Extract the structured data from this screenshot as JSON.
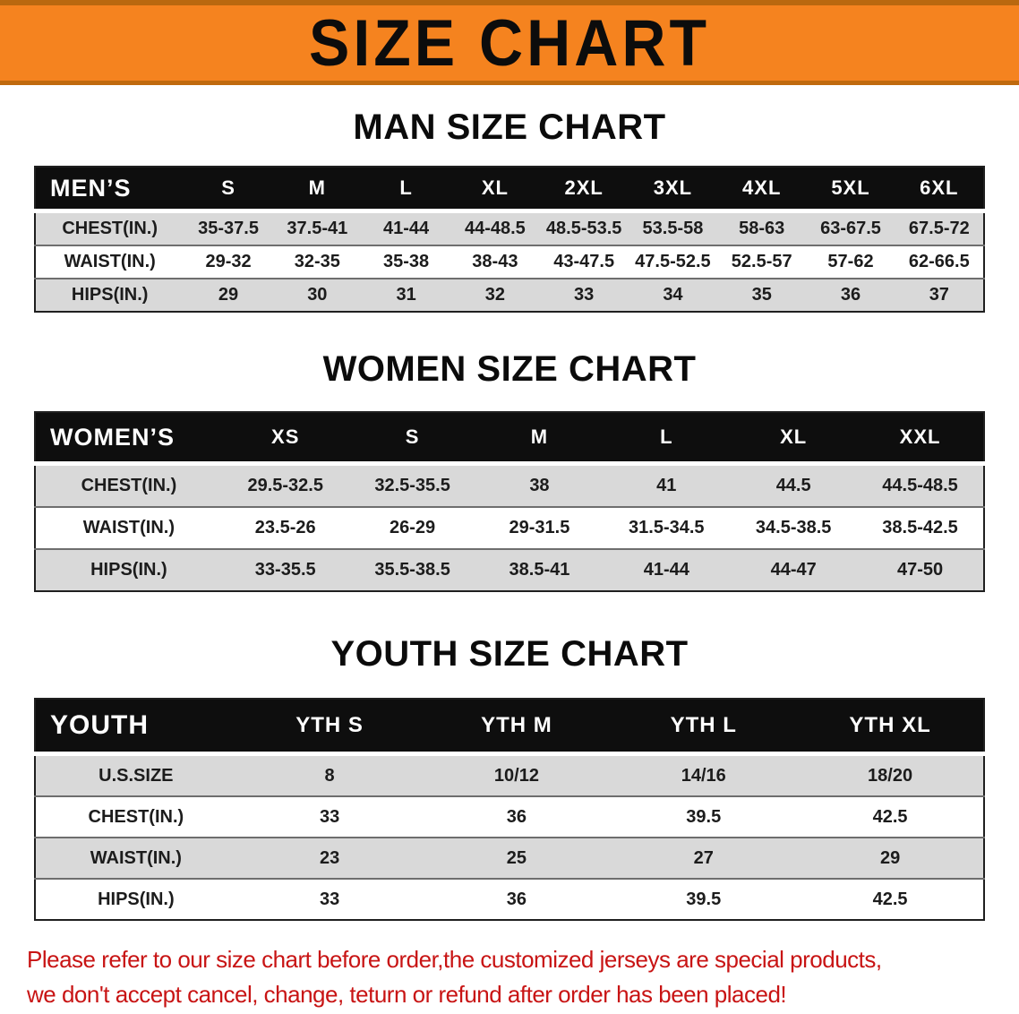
{
  "banner": {
    "title": "SIZE CHART"
  },
  "sections": {
    "men": {
      "heading": "MAN SIZE CHART",
      "table": {
        "header": [
          "MEN’S",
          "S",
          "M",
          "L",
          "XL",
          "2XL",
          "3XL",
          "4XL",
          "5XL",
          "6XL"
        ],
        "rows": [
          [
            "CHEST(IN.)",
            "35-37.5",
            "37.5-41",
            "41-44",
            "44-48.5",
            "48.5-53.5",
            "53.5-58",
            "58-63",
            "63-67.5",
            "67.5-72"
          ],
          [
            "WAIST(IN.)",
            "29-32",
            "32-35",
            "35-38",
            "38-43",
            "43-47.5",
            "47.5-52.5",
            "52.5-57",
            "57-62",
            "62-66.5"
          ],
          [
            "HIPS(IN.)",
            "29",
            "30",
            "31",
            "32",
            "33",
            "34",
            "35",
            "36",
            "37"
          ]
        ]
      }
    },
    "women": {
      "heading": "WOMEN SIZE CHART",
      "table": {
        "header": [
          "WOMEN’S",
          "XS",
          "S",
          "M",
          "L",
          "XL",
          "XXL"
        ],
        "rows": [
          [
            "CHEST(IN.)",
            "29.5-32.5",
            "32.5-35.5",
            "38",
            "41",
            "44.5",
            "44.5-48.5"
          ],
          [
            "WAIST(IN.)",
            "23.5-26",
            "26-29",
            "29-31.5",
            "31.5-34.5",
            "34.5-38.5",
            "38.5-42.5"
          ],
          [
            "HIPS(IN.)",
            "33-35.5",
            "35.5-38.5",
            "38.5-41",
            "41-44",
            "44-47",
            "47-50"
          ]
        ]
      }
    },
    "youth": {
      "heading": "YOUTH SIZE CHART",
      "table": {
        "header": [
          "YOUTH",
          "YTH S",
          "YTH M",
          "YTH L",
          "YTH XL"
        ],
        "rows": [
          [
            "U.S.SIZE",
            "8",
            "10/12",
            "14/16",
            "18/20"
          ],
          [
            "CHEST(IN.)",
            "33",
            "36",
            "39.5",
            "42.5"
          ],
          [
            "WAIST(IN.)",
            "23",
            "25",
            "27",
            "29"
          ],
          [
            "HIPS(IN.)",
            "33",
            "36",
            "39.5",
            "42.5"
          ]
        ]
      }
    }
  },
  "footer": {
    "line1": "Please refer to our size chart before order,the customized jerseys are special products,",
    "line2": "we don't accept cancel, change, teturn or refund after order has been placed!"
  },
  "colors": {
    "banner_orange": "#f5831f",
    "header_black": "#0e0e0e",
    "row_gray": "#d9d9d9",
    "footer_red": "#c81414"
  }
}
